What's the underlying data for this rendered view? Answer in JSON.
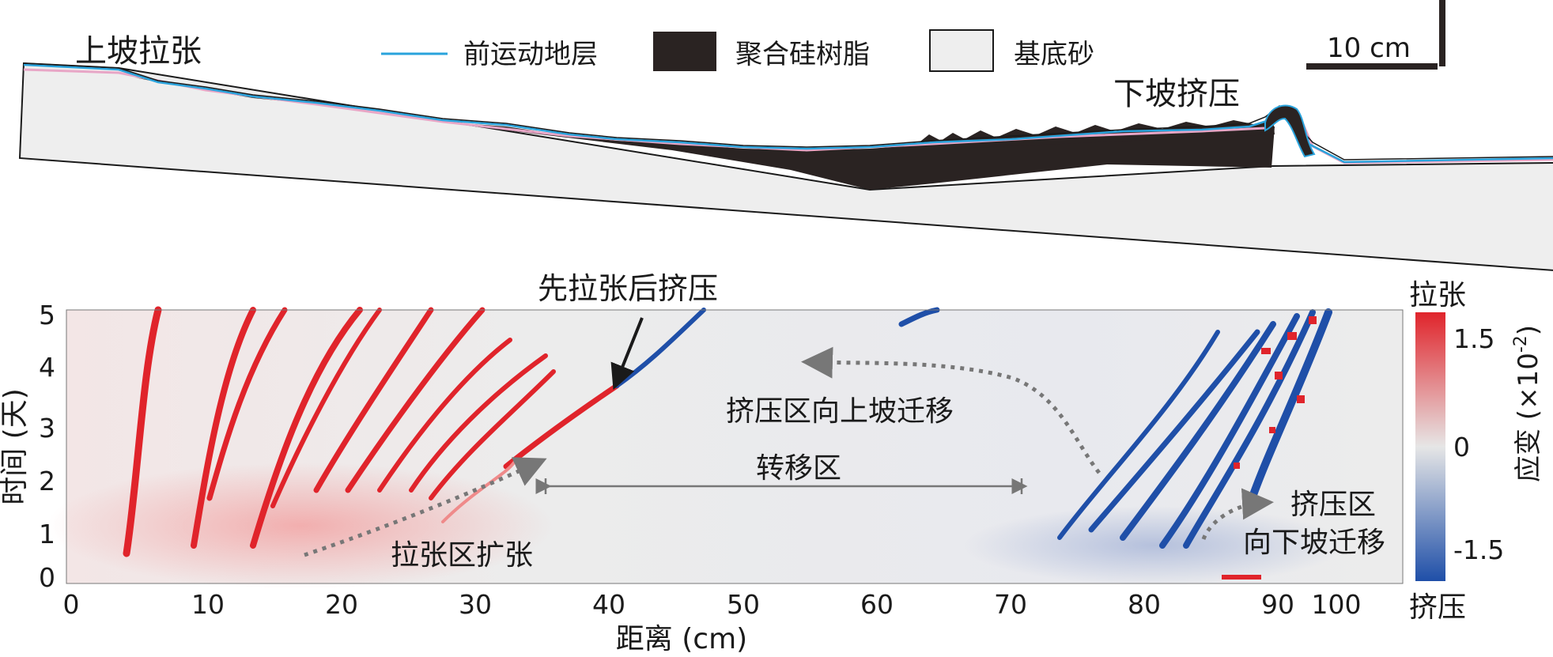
{
  "top_panel": {
    "label_upslope": "上坡拉张",
    "label_downslope": "下坡挤压",
    "legend": [
      {
        "key": "pre_kinematic",
        "label": "前运动地层",
        "color": "#29a3dc"
      },
      {
        "key": "silicone",
        "label": "聚合硅树脂",
        "color": "#2a2322"
      },
      {
        "key": "sand",
        "label": "基底砂",
        "color": "#eeeeee"
      }
    ],
    "scalebar_label": "10 cm"
  },
  "bottom_panel": {
    "x_axis_label": "距离 (cm)",
    "y_axis_label": "时间 (天)",
    "x_ticks": [
      "0",
      "10",
      "20",
      "30",
      "40",
      "50",
      "60",
      "70",
      "80",
      "90",
      "100"
    ],
    "y_ticks": [
      "0",
      "1",
      "2",
      "3",
      "4",
      "5"
    ],
    "annotations": {
      "extension_then_compression": "先拉张后挤压",
      "compression_upslope": "挤压区向上坡迁移",
      "transfer_zone": "转移区",
      "extension_expand": "拉张区扩张",
      "compression_zone_line1": "挤压区",
      "compression_zone_line2": "向下坡迁移"
    },
    "colorbar": {
      "top_label": "拉张",
      "bottom_label": "挤压",
      "title": "应变 (×10",
      "title_exponent": "-2",
      "title_close": ")",
      "tick_high": "1.5",
      "tick_mid": "0",
      "tick_low": "-1.5",
      "color_high": "#e0242b",
      "color_mid": "#e6e6e6",
      "color_low": "#1f4fa8"
    }
  }
}
